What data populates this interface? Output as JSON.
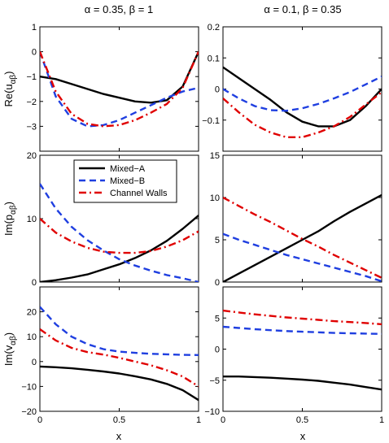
{
  "chart_data": {
    "type": "line",
    "layout": "3x2 grid",
    "column_titles": [
      "α = 0.35, β = 1",
      "α = 0.1, β = 0.35"
    ],
    "row_ylabels": [
      {
        "base": "Re(u",
        "sub": "αβ",
        "close": ")"
      },
      {
        "base": "Im(p",
        "sub": "αβ",
        "close": ")"
      },
      {
        "base": "Im(v",
        "sub": "αβ",
        "close": ")"
      }
    ],
    "xlabel": "x",
    "xlim": [
      0,
      1
    ],
    "xticks": [
      0,
      0.5,
      1
    ],
    "xtick_labels": [
      "0",
      "0.5",
      "1"
    ],
    "legend": {
      "placement": "top-center of middle-left panel",
      "entries": [
        {
          "name": "Mixed−A",
          "color": "#000000",
          "style": "solid"
        },
        {
          "name": "Mixed−B",
          "color": "#1f3fe0",
          "style": "dashed"
        },
        {
          "name": "Channel Walls",
          "color": "#e00000",
          "style": "dashdot"
        }
      ]
    },
    "panels": [
      {
        "id": "re-u-a035-b1",
        "ylim": [
          -4,
          1
        ],
        "yticks": [
          -3,
          -2,
          -1,
          0,
          1
        ],
        "ytick_labels": [
          "−3",
          "−2",
          "−1",
          "0",
          "1"
        ],
        "x": [
          0,
          0.1,
          0.2,
          0.3,
          0.4,
          0.5,
          0.6,
          0.7,
          0.8,
          0.9,
          1
        ],
        "series": [
          {
            "name": "Mixed−A",
            "values": [
              -1.0,
              -1.1,
              -1.3,
              -1.5,
              -1.7,
              -1.85,
              -2.0,
              -2.05,
              -1.95,
              -1.4,
              0.0
            ]
          },
          {
            "name": "Mixed−B",
            "values": [
              0.0,
              -1.8,
              -2.7,
              -3.0,
              -2.95,
              -2.75,
              -2.45,
              -2.15,
              -1.85,
              -1.6,
              -1.45
            ]
          },
          {
            "name": "Channel Walls",
            "values": [
              0.0,
              -1.6,
              -2.5,
              -2.9,
              -3.0,
              -2.95,
              -2.75,
              -2.45,
              -2.1,
              -1.45,
              0.0
            ]
          }
        ]
      },
      {
        "id": "re-u-a01-b035",
        "ylim": [
          -0.2,
          0.2
        ],
        "yticks": [
          -0.1,
          0,
          0.1,
          0.2
        ],
        "ytick_labels": [
          "−0.1",
          "0",
          "0.1",
          "0.2"
        ],
        "x": [
          0,
          0.1,
          0.2,
          0.3,
          0.4,
          0.5,
          0.6,
          0.7,
          0.8,
          0.9,
          1
        ],
        "series": [
          {
            "name": "Mixed−A",
            "values": [
              0.07,
              0.035,
              0.0,
              -0.035,
              -0.075,
              -0.105,
              -0.12,
              -0.12,
              -0.1,
              -0.055,
              0.0
            ]
          },
          {
            "name": "Mixed−B",
            "values": [
              0.0,
              -0.03,
              -0.055,
              -0.068,
              -0.07,
              -0.062,
              -0.048,
              -0.03,
              -0.01,
              0.015,
              0.04
            ]
          },
          {
            "name": "Channel Walls",
            "values": [
              -0.03,
              -0.075,
              -0.115,
              -0.14,
              -0.155,
              -0.155,
              -0.14,
              -0.12,
              -0.09,
              -0.05,
              -0.01
            ]
          }
        ]
      },
      {
        "id": "im-p-a035-b1",
        "ylim": [
          0,
          20
        ],
        "yticks": [
          0,
          10,
          20
        ],
        "ytick_labels": [
          "0",
          "10",
          "20"
        ],
        "x": [
          0,
          0.1,
          0.2,
          0.3,
          0.4,
          0.5,
          0.6,
          0.7,
          0.8,
          0.9,
          1
        ],
        "series": [
          {
            "name": "Mixed−A",
            "values": [
              0.0,
              0.3,
              0.7,
              1.2,
              2.0,
              2.8,
              3.8,
              5.0,
              6.5,
              8.4,
              10.5
            ]
          },
          {
            "name": "Mixed−B",
            "values": [
              15.5,
              11.6,
              8.7,
              6.6,
              5.0,
              3.6,
              2.6,
              1.8,
              1.1,
              0.6,
              0.0
            ]
          },
          {
            "name": "Channel Walls",
            "values": [
              10.0,
              7.8,
              6.4,
              5.4,
              4.8,
              4.6,
              4.6,
              4.9,
              5.6,
              6.6,
              8.0
            ]
          }
        ]
      },
      {
        "id": "im-p-a01-b035",
        "ylim": [
          0,
          15
        ],
        "yticks": [
          0,
          5,
          10,
          15
        ],
        "ytick_labels": [
          "0",
          "5",
          "10",
          "15"
        ],
        "x": [
          0,
          0.1,
          0.2,
          0.3,
          0.4,
          0.5,
          0.6,
          0.7,
          0.8,
          0.9,
          1
        ],
        "series": [
          {
            "name": "Mixed−A",
            "values": [
              0.0,
              1.0,
              2.0,
              3.0,
              4.0,
              5.0,
              6.0,
              7.2,
              8.3,
              9.3,
              10.3
            ]
          },
          {
            "name": "Mixed−B",
            "values": [
              5.7,
              5.0,
              4.4,
              3.8,
              3.2,
              2.7,
              2.2,
              1.7,
              1.2,
              0.7,
              0.1
            ]
          },
          {
            "name": "Channel Walls",
            "values": [
              10.0,
              9.0,
              8.0,
              7.1,
              6.1,
              5.1,
              4.2,
              3.2,
              2.3,
              1.4,
              0.5
            ]
          }
        ]
      },
      {
        "id": "im-v-a035-b1",
        "ylim": [
          -20,
          30
        ],
        "yticks": [
          -20,
          -10,
          0,
          10,
          20
        ],
        "ytick_labels": [
          "−20",
          "−10",
          "0",
          "10",
          "20"
        ],
        "x": [
          0,
          0.1,
          0.2,
          0.3,
          0.4,
          0.5,
          0.6,
          0.7,
          0.8,
          0.9,
          1
        ],
        "series": [
          {
            "name": "Mixed−A",
            "values": [
              -2.0,
              -2.3,
              -2.7,
              -3.3,
              -4.0,
              -4.8,
              -5.9,
              -7.2,
              -9.0,
              -11.5,
              -15.5
            ]
          },
          {
            "name": "Mixed−B",
            "values": [
              22.0,
              15.0,
              10.0,
              7.0,
              5.0,
              4.0,
              3.5,
              3.1,
              2.9,
              2.7,
              2.6
            ]
          },
          {
            "name": "Channel Walls",
            "values": [
              13.0,
              8.5,
              5.5,
              3.8,
              2.8,
              1.5,
              0.0,
              -1.5,
              -3.5,
              -6.0,
              -10.0
            ]
          }
        ]
      },
      {
        "id": "im-v-a01-b035",
        "ylim": [
          -10,
          10
        ],
        "yticks": [
          -10,
          -5,
          0,
          5
        ],
        "ytick_labels": [
          "−10",
          "−5",
          "0",
          "5"
        ],
        "x": [
          0,
          0.1,
          0.2,
          0.3,
          0.4,
          0.5,
          0.6,
          0.7,
          0.8,
          0.9,
          1
        ],
        "series": [
          {
            "name": "Mixed−A",
            "values": [
              -4.4,
              -4.4,
              -4.5,
              -4.6,
              -4.75,
              -4.9,
              -5.1,
              -5.4,
              -5.7,
              -6.1,
              -6.5
            ]
          },
          {
            "name": "Mixed−B",
            "values": [
              3.6,
              3.4,
              3.2,
              3.05,
              2.9,
              2.8,
              2.7,
              2.6,
              2.55,
              2.5,
              2.45
            ]
          },
          {
            "name": "Channel Walls",
            "values": [
              6.2,
              5.9,
              5.6,
              5.35,
              5.1,
              4.9,
              4.7,
              4.5,
              4.35,
              4.2,
              4.0
            ]
          }
        ]
      }
    ]
  }
}
